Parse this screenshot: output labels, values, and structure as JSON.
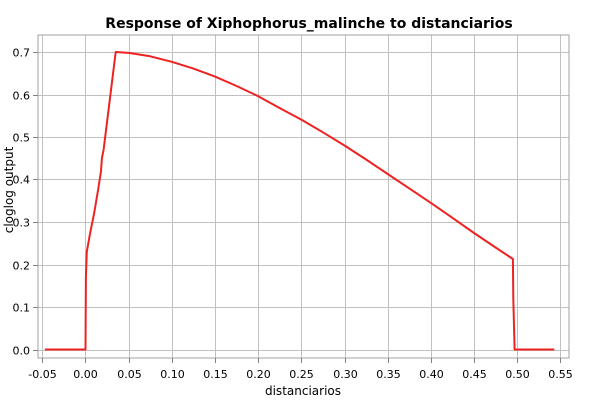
{
  "chart_data": {
    "type": "line",
    "title": "Response of Xiphophorus_malinche to distanciarios",
    "xlabel": "distanciarios",
    "ylabel": "cloglog output",
    "xlim": [
      -0.055,
      0.56
    ],
    "ylim": [
      -0.02,
      0.74
    ],
    "x_ticks": [
      -0.05,
      0.0,
      0.05,
      0.1,
      0.15,
      0.2,
      0.25,
      0.3,
      0.35,
      0.4,
      0.45,
      0.5,
      0.55
    ],
    "x_tick_labels": [
      "-0.05",
      "0.00",
      "0.05",
      "0.10",
      "0.15",
      "0.20",
      "0.25",
      "0.30",
      "0.35",
      "0.40",
      "0.45",
      "0.50",
      "0.55"
    ],
    "y_ticks": [
      0.0,
      0.1,
      0.2,
      0.3,
      0.4,
      0.5,
      0.6,
      0.7
    ],
    "y_tick_labels": [
      "0.0",
      "0.1",
      "0.2",
      "0.3",
      "0.4",
      "0.5",
      "0.6",
      "0.7"
    ],
    "grid": true,
    "line_color": "#ee2222",
    "series": [
      {
        "x": [
          -0.047,
          0.0,
          0.0005,
          0.0015,
          0.005,
          0.01,
          0.015,
          0.018,
          0.019,
          0.021,
          0.035,
          0.05,
          0.075,
          0.1,
          0.125,
          0.15,
          0.175,
          0.2,
          0.225,
          0.25,
          0.275,
          0.3,
          0.325,
          0.35,
          0.375,
          0.4,
          0.425,
          0.45,
          0.475,
          0.495,
          0.4955,
          0.497,
          0.543
        ],
        "y": [
          0.0,
          0.0,
          0.17,
          0.23,
          0.27,
          0.32,
          0.38,
          0.42,
          0.45,
          0.47,
          0.7,
          0.698,
          0.69,
          0.677,
          0.661,
          0.642,
          0.62,
          0.596,
          0.568,
          0.541,
          0.511,
          0.48,
          0.447,
          0.413,
          0.379,
          0.345,
          0.31,
          0.274,
          0.24,
          0.213,
          0.12,
          0.0,
          0.0
        ]
      }
    ]
  }
}
